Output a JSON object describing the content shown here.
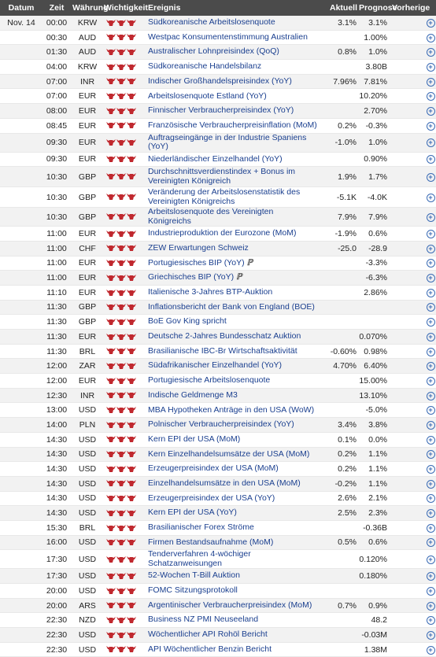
{
  "header": {
    "date": "Datum",
    "time": "Zeit",
    "currency": "Währung",
    "importance": "Wichtigkeit",
    "event": "Ereignis",
    "actual": "Aktuell",
    "forecast": "Prognose",
    "previous": "Vorherige"
  },
  "date_label": "Nov. 14",
  "colors": {
    "header_bg": "#4b4b4b",
    "bull": "#c0282e",
    "event_link": "#1a3f8f",
    "add_icon": "#3a6bb5"
  },
  "rows": [
    {
      "time": "00:00",
      "cur": "KRW",
      "imp": 3,
      "event": "Südkoreanische Arbeitslosenquote",
      "act": "3.1%",
      "fc": "3.1%",
      "prev": ""
    },
    {
      "time": "00:30",
      "cur": "AUD",
      "imp": 3,
      "event": "Westpac Konsumentenstimmung Australien",
      "act": "",
      "fc": "1.00%",
      "prev": ""
    },
    {
      "time": "01:30",
      "cur": "AUD",
      "imp": 3,
      "event": "Australischer Lohnpreisindex (QoQ)",
      "act": "0.8%",
      "fc": "1.0%",
      "prev": ""
    },
    {
      "time": "04:00",
      "cur": "KRW",
      "imp": 3,
      "event": "Südkoreanische Handelsbilanz",
      "act": "",
      "fc": "3.80B",
      "prev": ""
    },
    {
      "time": "07:00",
      "cur": "INR",
      "imp": 3,
      "event": "Indischer Großhandelspreisindex (YoY)",
      "act": "7.96%",
      "fc": "7.81%",
      "prev": ""
    },
    {
      "time": "07:00",
      "cur": "EUR",
      "imp": 3,
      "event": "Arbeitslosenquote Estland (YoY)",
      "act": "",
      "fc": "10.20%",
      "prev": ""
    },
    {
      "time": "08:00",
      "cur": "EUR",
      "imp": 3,
      "event": "Finnischer Verbraucherpreisindex (YoY)",
      "act": "",
      "fc": "2.70%",
      "prev": ""
    },
    {
      "time": "08:45",
      "cur": "EUR",
      "imp": 3,
      "event": "Französische Verbraucherpreisinflation (MoM)",
      "act": "0.2%",
      "fc": "-0.3%",
      "prev": ""
    },
    {
      "time": "09:30",
      "cur": "EUR",
      "imp": 3,
      "event": "Auftragseingänge in der Industrie Spaniens (YoY)",
      "act": "-1.0%",
      "fc": "1.0%",
      "prev": ""
    },
    {
      "time": "09:30",
      "cur": "EUR",
      "imp": 3,
      "event": "Niederländischer Einzelhandel (YoY)",
      "act": "",
      "fc": "0.90%",
      "prev": ""
    },
    {
      "time": "10:30",
      "cur": "GBP",
      "imp": 3,
      "tall": true,
      "event": "Durchschnittsverdienstindex + Bonus im Vereinigten Königreich",
      "act": "1.9%",
      "fc": "1.7%",
      "prev": ""
    },
    {
      "time": "10:30",
      "cur": "GBP",
      "imp": 3,
      "tall": true,
      "event": "Veränderung der Arbeitslosenstatistik des Vereinigten Königreichs",
      "act": "-5.1K",
      "fc": "-4.0K",
      "prev": ""
    },
    {
      "time": "10:30",
      "cur": "GBP",
      "imp": 3,
      "event": "Arbeitslosenquote des Vereinigten Königreichs",
      "act": "7.9%",
      "fc": "7.9%",
      "prev": ""
    },
    {
      "time": "11:00",
      "cur": "EUR",
      "imp": 3,
      "event": "Industrieproduktion der Eurozone (MoM)",
      "act": "-1.9%",
      "fc": "0.6%",
      "prev": ""
    },
    {
      "time": "11:00",
      "cur": "CHF",
      "imp": 3,
      "event": "ZEW Erwartungen Schweiz",
      "act": "-25.0",
      "fc": "-28.9",
      "prev": ""
    },
    {
      "time": "11:00",
      "cur": "EUR",
      "imp": 3,
      "event": "Portugiesisches BIP (YoY)",
      "pmark": true,
      "act": "",
      "fc": "-3.3%",
      "prev": ""
    },
    {
      "time": "11:00",
      "cur": "EUR",
      "imp": 3,
      "event": "Griechisches BIP (YoY)",
      "pmark": true,
      "act": "",
      "fc": "-6.3%",
      "prev": ""
    },
    {
      "time": "11:10",
      "cur": "EUR",
      "imp": 3,
      "event": "Italienische 3-Jahres BTP-Auktion",
      "act": "",
      "fc": "2.86%",
      "prev": ""
    },
    {
      "time": "11:30",
      "cur": "GBP",
      "imp": 3,
      "event": "Inflationsbericht der Bank von England (BOE)",
      "act": "",
      "fc": "",
      "prev": ""
    },
    {
      "time": "11:30",
      "cur": "GBP",
      "imp": 3,
      "event": "BoE Gov King spricht",
      "act": "",
      "fc": "",
      "prev": ""
    },
    {
      "time": "11:30",
      "cur": "EUR",
      "imp": 3,
      "event": "Deutsche 2-Jahres Bundesschatz Auktion",
      "act": "",
      "fc": "0.070%",
      "prev": ""
    },
    {
      "time": "11:30",
      "cur": "BRL",
      "imp": 3,
      "event": "Brasilianische IBC-Br Wirtschaftsaktivität",
      "act": "-0.60%",
      "fc": "0.98%",
      "prev": ""
    },
    {
      "time": "12:00",
      "cur": "ZAR",
      "imp": 3,
      "event": "Südafrikanischer Einzelhandel (YoY)",
      "act": "4.70%",
      "fc": "6.40%",
      "prev": ""
    },
    {
      "time": "12:00",
      "cur": "EUR",
      "imp": 3,
      "event": "Portugiesische Arbeitslosenquote",
      "act": "",
      "fc": "15.00%",
      "prev": ""
    },
    {
      "time": "12:30",
      "cur": "INR",
      "imp": 3,
      "event": "Indische Geldmenge M3",
      "act": "",
      "fc": "13.10%",
      "prev": ""
    },
    {
      "time": "13:00",
      "cur": "USD",
      "imp": 3,
      "event": "MBA Hypotheken Anträge in den USA (WoW)",
      "act": "",
      "fc": "-5.0%",
      "prev": ""
    },
    {
      "time": "14:00",
      "cur": "PLN",
      "imp": 3,
      "event": "Polnischer Verbraucherpreisindex (YoY)",
      "act": "3.4%",
      "fc": "3.8%",
      "prev": ""
    },
    {
      "time": "14:30",
      "cur": "USD",
      "imp": 3,
      "event": "Kern EPI der USA (MoM)",
      "act": "0.1%",
      "fc": "0.0%",
      "prev": ""
    },
    {
      "time": "14:30",
      "cur": "USD",
      "imp": 3,
      "event": "Kern Einzelhandelsumsätze der USA (MoM)",
      "act": "0.2%",
      "fc": "1.1%",
      "prev": ""
    },
    {
      "time": "14:30",
      "cur": "USD",
      "imp": 3,
      "event": "Erzeugerpreisindex der USA (MoM)",
      "act": "0.2%",
      "fc": "1.1%",
      "prev": ""
    },
    {
      "time": "14:30",
      "cur": "USD",
      "imp": 3,
      "event": "Einzelhandelsumsätze in den USA (MoM)",
      "act": "-0.2%",
      "fc": "1.1%",
      "prev": ""
    },
    {
      "time": "14:30",
      "cur": "USD",
      "imp": 3,
      "event": "Erzeugerpreisindex der USA (YoY)",
      "act": "2.6%",
      "fc": "2.1%",
      "prev": ""
    },
    {
      "time": "14:30",
      "cur": "USD",
      "imp": 3,
      "event": "Kern EPI der USA (YoY)",
      "act": "2.5%",
      "fc": "2.3%",
      "prev": ""
    },
    {
      "time": "15:30",
      "cur": "BRL",
      "imp": 3,
      "event": "Brasilianischer Forex Ströme",
      "act": "",
      "fc": "-0.36B",
      "prev": ""
    },
    {
      "time": "16:00",
      "cur": "USD",
      "imp": 3,
      "event": "Firmen Bestandsaufnahme (MoM)",
      "act": "0.5%",
      "fc": "0.6%",
      "prev": ""
    },
    {
      "time": "17:30",
      "cur": "USD",
      "imp": 3,
      "event": "Tenderverfahren 4-wöchiger Schatzanweisungen",
      "act": "",
      "fc": "0.120%",
      "prev": ""
    },
    {
      "time": "17:30",
      "cur": "USD",
      "imp": 3,
      "event": "52-Wochen T-Bill Auktion",
      "act": "",
      "fc": "0.180%",
      "prev": ""
    },
    {
      "time": "20:00",
      "cur": "USD",
      "imp": 3,
      "event": "FOMC Sitzungsprotokoll",
      "act": "",
      "fc": "",
      "prev": ""
    },
    {
      "time": "20:00",
      "cur": "ARS",
      "imp": 3,
      "event": "Argentinischer Verbraucherpreisindex (MoM)",
      "act": "0.7%",
      "fc": "0.9%",
      "prev": ""
    },
    {
      "time": "22:30",
      "cur": "NZD",
      "imp": 3,
      "event": "Business NZ PMI Neuseeland",
      "act": "",
      "fc": "48.2",
      "prev": ""
    },
    {
      "time": "22:30",
      "cur": "USD",
      "imp": 3,
      "event": "Wöchentlicher API Rohöl Bericht",
      "act": "",
      "fc": "-0.03M",
      "prev": ""
    },
    {
      "time": "22:30",
      "cur": "USD",
      "imp": 3,
      "event": "API Wöchentlicher Benzin Bericht",
      "act": "",
      "fc": "1.38M",
      "prev": ""
    }
  ]
}
